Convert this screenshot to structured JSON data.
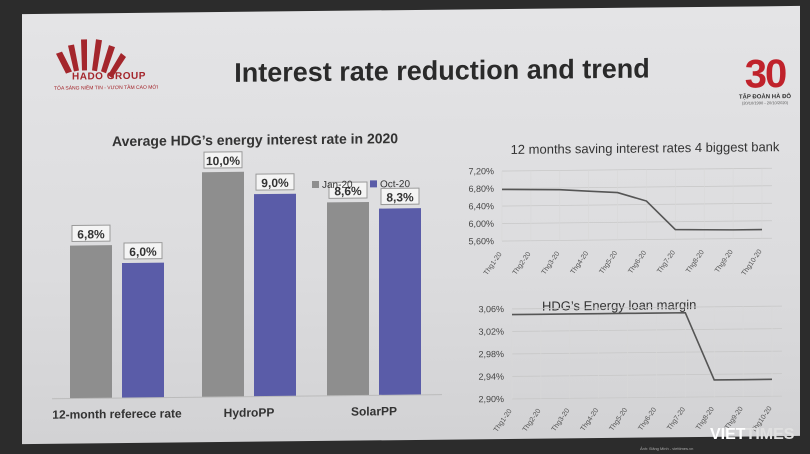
{
  "header": {
    "title": "Interest rate reduction and trend",
    "brand_name": "HADO GROUP",
    "brand_slogan": "TỎA SÁNG NIỀM TIN - VƯƠN TẦM CAO MỚI",
    "anniversary_number": "30",
    "anniversary_text": "TẬP ĐOÀN HÀ ĐÔ",
    "anniversary_years": "(20/10/1990 - 20/10/2020)",
    "accent_color": "#c0222b"
  },
  "watermark": {
    "viet": "VIET",
    "times": "TIMES",
    "credit": "Ảnh: Đăng Minh - viettimes.vn"
  },
  "chart_data": [
    {
      "type": "bar",
      "title": "Average HDG’s energy interest rate in 2020",
      "categories": [
        "12-month referece rate",
        "HydroPP",
        "SolarPP"
      ],
      "series": [
        {
          "name": "Jan-20",
          "values": [
            6.8,
            10.0,
            8.6
          ],
          "labels": [
            "6,8%",
            "10,0%",
            "8,6%"
          ],
          "color": "#8e8e8e"
        },
        {
          "name": "Oct-20",
          "values": [
            6.0,
            9.0,
            8.3
          ],
          "labels": [
            "6,0%",
            "9,0%",
            "8,3%"
          ],
          "color": "#5a5ca8"
        }
      ],
      "ylim": [
        0,
        10
      ],
      "legend_position": "top-right",
      "grid": false
    },
    {
      "type": "line",
      "title": "12 months saving interest rates 4 biggest bank",
      "categories": [
        "Thg1-20",
        "Thg2-20",
        "Thg3-20",
        "Thg4-20",
        "Thg5-20",
        "Thg6-20",
        "Thg7-20",
        "Thg8-20",
        "Thg9-20",
        "Thg10-20"
      ],
      "values": [
        6.78,
        6.77,
        6.76,
        6.72,
        6.68,
        6.48,
        5.82,
        5.81,
        5.8,
        5.8
      ],
      "y_ticks": [
        "7,20%",
        "6,80%",
        "6,40%",
        "6,00%",
        "5,60%"
      ],
      "ylim": [
        5.6,
        7.2
      ],
      "grid": true,
      "color": "#555555"
    },
    {
      "type": "line",
      "title": "HDG’s Energy loan margin",
      "categories": [
        "Thg1-20",
        "Thg2-20",
        "Thg3-20",
        "Thg4-20",
        "Thg5-20",
        "Thg6-20",
        "Thg7-20",
        "Thg8-20",
        "Thg9-20",
        "Thg10-20"
      ],
      "values": [
        3.05,
        3.05,
        3.05,
        3.05,
        3.05,
        3.05,
        3.05,
        2.93,
        2.93,
        2.93
      ],
      "y_ticks": [
        "3,06%",
        "3,02%",
        "2,98%",
        "2,94%",
        "2,90%"
      ],
      "ylim": [
        2.9,
        3.06
      ],
      "grid": true,
      "color": "#555555"
    }
  ]
}
